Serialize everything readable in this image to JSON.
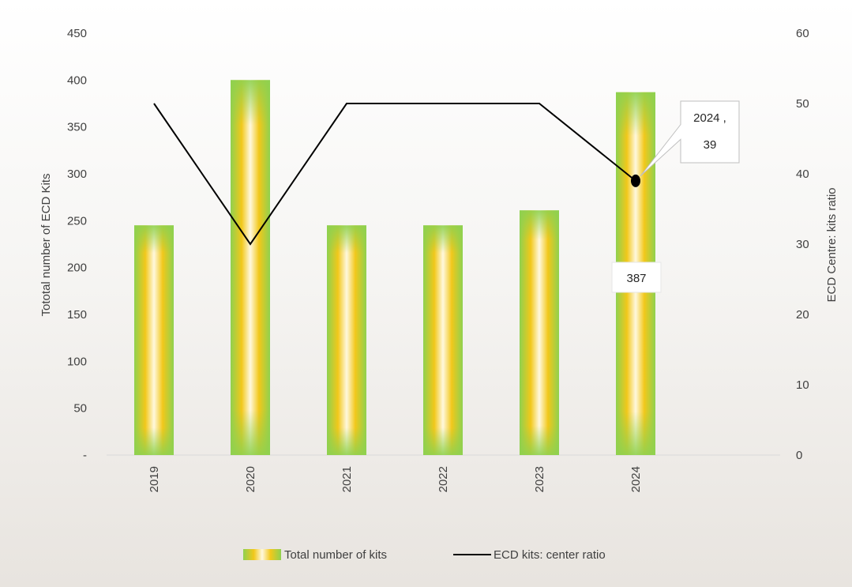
{
  "chart_data": {
    "type": "bar+line",
    "categories": [
      "2019",
      "2020",
      "2021",
      "2022",
      "2023",
      "2024"
    ],
    "series": [
      {
        "name": "Total number of kits",
        "type": "bar",
        "axis": "left",
        "values": [
          245,
          400,
          245,
          245,
          261,
          387
        ],
        "colors": {
          "edge": "#8fd14f",
          "mid": "#ffc000",
          "center": "#fffbe8"
        }
      },
      {
        "name": "ECD kits: center ratio",
        "type": "line",
        "axis": "right",
        "values": [
          50,
          30,
          50,
          50,
          50,
          39
        ],
        "color": "#000000"
      }
    ],
    "y_left": {
      "label": "Tototal number of ECD Kits",
      "range": [
        0,
        450
      ],
      "ticks": [
        "-",
        "50",
        "100",
        "150",
        "200",
        "250",
        "300",
        "350",
        "400",
        "450"
      ]
    },
    "y_right": {
      "label": "ECD Centre: kits ratio",
      "range": [
        0,
        60
      ],
      "ticks": [
        "0",
        "10",
        "20",
        "30",
        "40",
        "50",
        "60"
      ]
    },
    "xlabel": "",
    "grid": false,
    "legend_position": "bottom",
    "annotations": [
      {
        "series": "Total number of kits",
        "category": "2024",
        "text": "387"
      },
      {
        "series": "ECD kits: center ratio",
        "category": "2024",
        "text_line1": "2024 ,",
        "text_line2": "39"
      }
    ]
  }
}
